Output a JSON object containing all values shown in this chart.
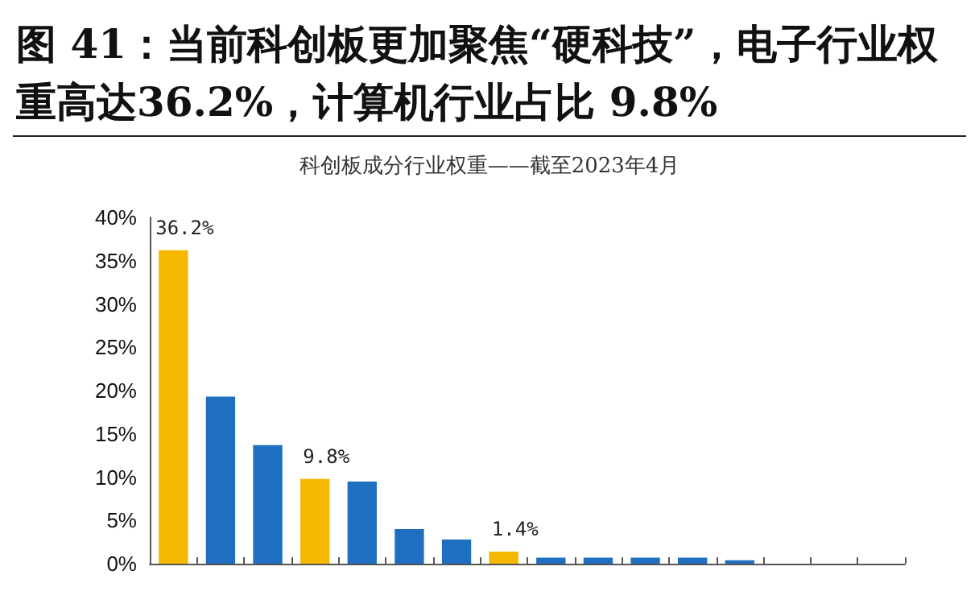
{
  "chart_data": {
    "type": "bar",
    "title": "图 41：当前科创板更加聚焦“硬科技”，电子行业权重高达36.2%，计算机行业占比 9.8%",
    "subtitle": "科创板成分行业权重——截至2023年4月",
    "categories": [
      null,
      null,
      null,
      null,
      null,
      null,
      null,
      null,
      null,
      null,
      null,
      null,
      null,
      null,
      null,
      null
    ],
    "values": [
      36.2,
      19.3,
      13.7,
      9.8,
      9.5,
      4.0,
      2.8,
      1.4,
      0.7,
      0.7,
      0.7,
      0.7,
      0.4,
      0,
      0,
      0
    ],
    "colors": [
      "#f5b800",
      "#1f6fc0",
      "#1f6fc0",
      "#f5b800",
      "#1f6fc0",
      "#1f6fc0",
      "#1f6fc0",
      "#f5b800",
      "#1f6fc0",
      "#1f6fc0",
      "#1f6fc0",
      "#1f6fc0",
      "#1f6fc0",
      "#1f6fc0",
      "#1f6fc0",
      "#1f6fc0"
    ],
    "value_labels": [
      "36.2%",
      null,
      null,
      "9.8%",
      null,
      null,
      null,
      "1.4%",
      null,
      null,
      null,
      null,
      null,
      null,
      null,
      null
    ],
    "ylim": [
      0,
      40
    ],
    "yticks": [
      {
        "value": 0,
        "label": "0%"
      },
      {
        "value": 5,
        "label": "5%"
      },
      {
        "value": 10,
        "label": "10%"
      },
      {
        "value": 15,
        "label": "15%"
      },
      {
        "value": 20,
        "label": "20%"
      },
      {
        "value": 25,
        "label": "25%"
      },
      {
        "value": 30,
        "label": "30%"
      },
      {
        "value": 35,
        "label": "35%"
      },
      {
        "value": 40,
        "label": "40%"
      }
    ],
    "grid": false
  }
}
